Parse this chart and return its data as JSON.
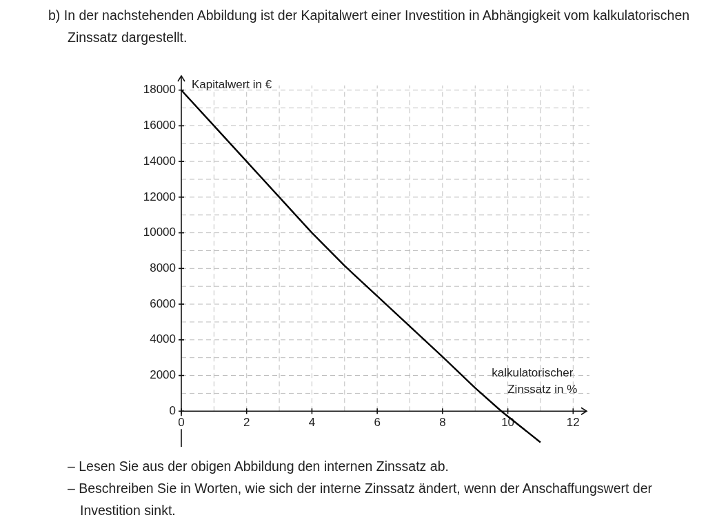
{
  "chart_data": {
    "type": "line",
    "title": "b) In der nachstehenden Abbildung ist der Kapitalwert einer Investition in Abhängigkeit vom kalkulatorischen Zinssatz dargestellt.",
    "xlabel": "kalkulatorischer Zinssatz in %",
    "ylabel": "Kapitalwert in €",
    "annotations": [
      "– Lesen Sie aus der obigen Abbildung den internen Zinssatz ab.",
      "– Beschreiben Sie in Worten, wie sich der interne Zinssatz ändert, wenn der Anschaffungswert der Investition sinkt."
    ],
    "x": [
      0,
      1,
      2,
      3,
      4,
      5,
      6,
      7,
      8,
      9,
      9.8,
      11
    ],
    "series": [
      {
        "color": "#000000",
        "values": [
          18000,
          16000,
          14000,
          12000,
          10000,
          8150,
          6450,
          4750,
          3050,
          1300,
          0,
          -1750
        ]
      }
    ],
    "xlim": [
      0,
      12.5
    ],
    "ylim": [
      -2000,
      18800
    ],
    "xticks": [
      0,
      {
        "value": 1,
        "label": null
      },
      2,
      {
        "value": 3,
        "label": null
      },
      4,
      {
        "value": 5,
        "label": null
      },
      6,
      {
        "value": 7,
        "label": null
      },
      8,
      {
        "value": 9,
        "label": null
      },
      10,
      {
        "value": 11,
        "label": null
      },
      12
    ],
    "yticks": [
      0,
      {
        "value": 1000,
        "label": null
      },
      2000,
      {
        "value": 3000,
        "label": null
      },
      4000,
      {
        "value": 5000,
        "label": null
      },
      6000,
      {
        "value": 7000,
        "label": null
      },
      8000,
      {
        "value": 9000,
        "label": null
      },
      10000,
      {
        "value": 11000,
        "label": null
      },
      12000,
      {
        "value": 13000,
        "label": null
      },
      14000,
      {
        "value": 15000,
        "label": null
      },
      16000,
      {
        "value": 17000,
        "label": null
      },
      18000
    ],
    "grid": true,
    "legend": false,
    "marker": "none",
    "line_style": "solid"
  }
}
